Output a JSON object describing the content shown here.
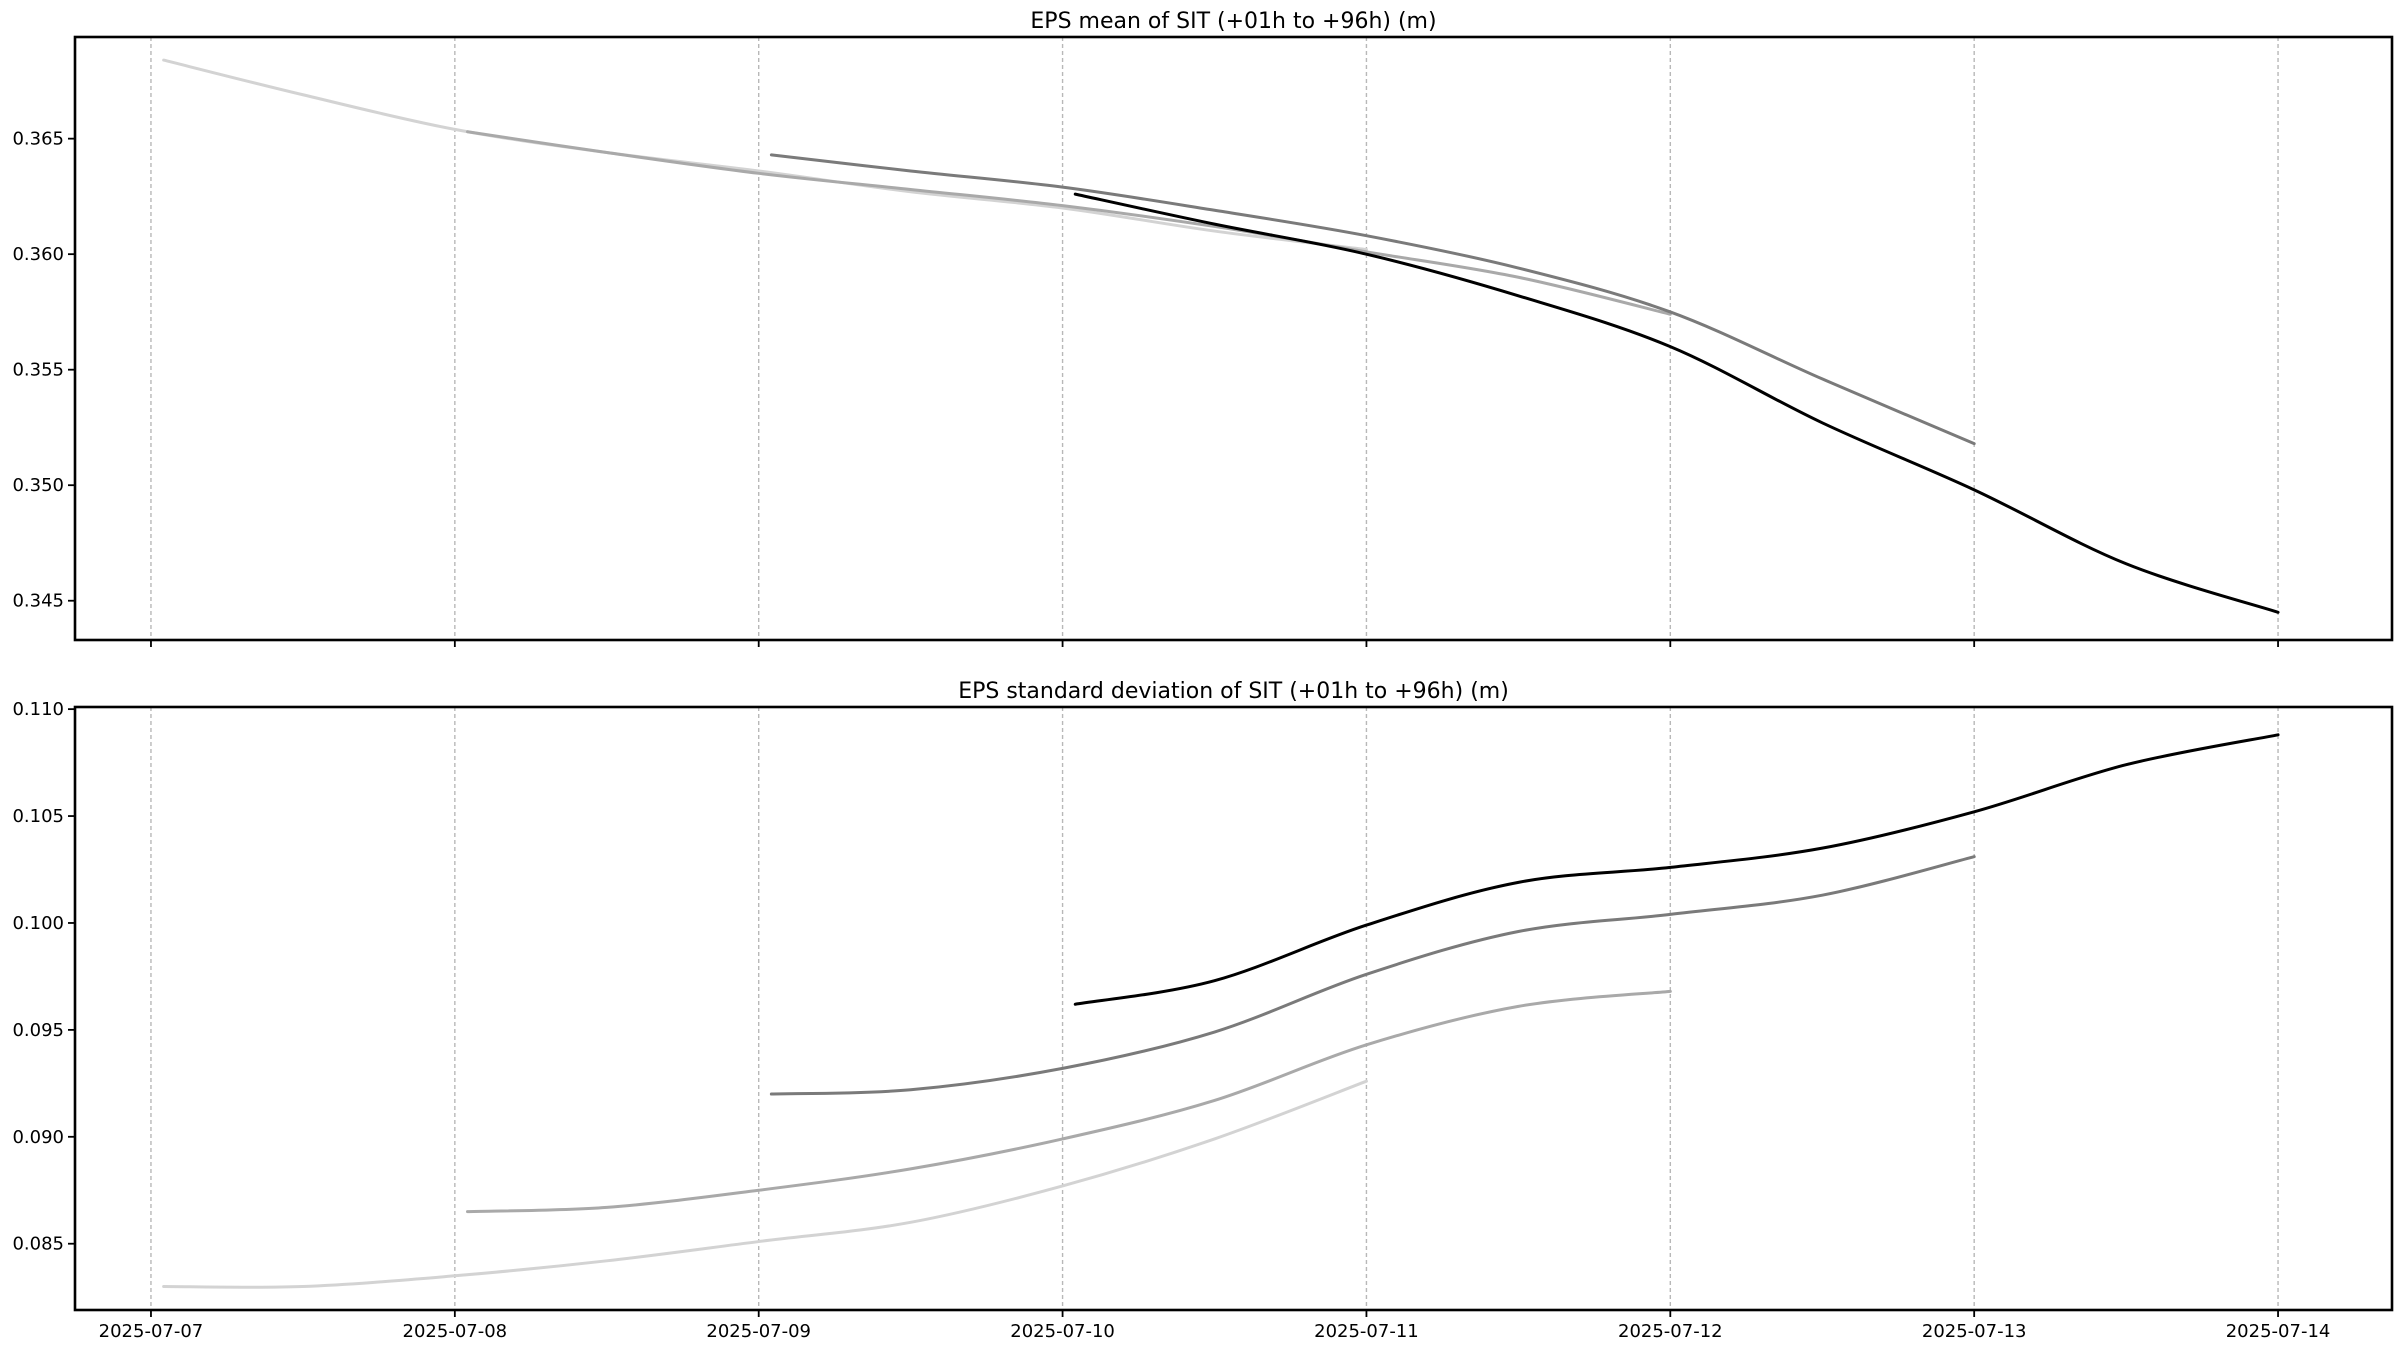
{
  "chart_data": [
    {
      "type": "line",
      "title": "EPS mean of SIT (+01h to +96h) (m)",
      "xlabel": "",
      "ylabel": "",
      "x_type": "date",
      "xlim": [
        "2025-07-06 18:00",
        "2025-07-14 09:00"
      ],
      "ylim": [
        0.3433,
        0.3694
      ],
      "x_ticks": [
        "2025-07-07",
        "2025-07-08",
        "2025-07-09",
        "2025-07-10",
        "2025-07-11",
        "2025-07-12",
        "2025-07-13",
        "2025-07-14"
      ],
      "y_ticks": [
        0.345,
        0.35,
        0.355,
        0.36,
        0.365
      ],
      "y_tick_labels": [
        "0.345",
        "0.350",
        "0.355",
        "0.360",
        "0.365"
      ],
      "grid": "vertical dashed lines at x ticks",
      "x_tick_labels_shown": false,
      "series": [
        {
          "color": "#d3d3d3",
          "points": [
            [
              "2025-07-07 01:00",
              0.3684
            ],
            [
              "2025-07-07 12:00",
              0.3669
            ],
            [
              "2025-07-08 00:00",
              0.3654
            ],
            [
              "2025-07-08 12:00",
              0.3644
            ],
            [
              "2025-07-09 00:00",
              0.3636
            ],
            [
              "2025-07-09 12:00",
              0.3627
            ],
            [
              "2025-07-10 00:00",
              0.362
            ],
            [
              "2025-07-10 12:00",
              0.361
            ],
            [
              "2025-07-11 00:00",
              0.3602
            ]
          ]
        },
        {
          "color": "#a9a9a9",
          "points": [
            [
              "2025-07-08 01:00",
              0.3653
            ],
            [
              "2025-07-08 12:00",
              0.3644
            ],
            [
              "2025-07-09 00:00",
              0.3635
            ],
            [
              "2025-07-09 12:00",
              0.3628
            ],
            [
              "2025-07-10 00:00",
              0.3621
            ],
            [
              "2025-07-10 12:00",
              0.3612
            ],
            [
              "2025-07-11 00:00",
              0.3601
            ],
            [
              "2025-07-11 12:00",
              0.359
            ],
            [
              "2025-07-12 00:00",
              0.3574
            ]
          ]
        },
        {
          "color": "#7a7a7a",
          "points": [
            [
              "2025-07-09 01:00",
              0.3643
            ],
            [
              "2025-07-09 12:00",
              0.3636
            ],
            [
              "2025-07-10 00:00",
              0.3629
            ],
            [
              "2025-07-10 12:00",
              0.3619
            ],
            [
              "2025-07-11 00:00",
              0.3608
            ],
            [
              "2025-07-11 12:00",
              0.3594
            ],
            [
              "2025-07-12 00:00",
              0.3575
            ],
            [
              "2025-07-12 12:00",
              0.3546
            ],
            [
              "2025-07-13 00:00",
              0.3518
            ]
          ]
        },
        {
          "color": "#000000",
          "points": [
            [
              "2025-07-10 01:00",
              0.3626
            ],
            [
              "2025-07-10 12:00",
              0.3613
            ],
            [
              "2025-07-11 00:00",
              0.36
            ],
            [
              "2025-07-11 12:00",
              0.3582
            ],
            [
              "2025-07-12 00:00",
              0.356
            ],
            [
              "2025-07-12 12:00",
              0.3527
            ],
            [
              "2025-07-13 00:00",
              0.3498
            ],
            [
              "2025-07-13 12:00",
              0.3466
            ],
            [
              "2025-07-14 00:00",
              0.3445
            ]
          ]
        }
      ]
    },
    {
      "type": "line",
      "title": "EPS standard deviation of SIT (+01h to +96h) (m)",
      "xlabel": "",
      "ylabel": "",
      "x_type": "date",
      "xlim": [
        "2025-07-06 18:00",
        "2025-07-14 09:00"
      ],
      "ylim": [
        0.0819,
        0.1101
      ],
      "x_ticks": [
        "2025-07-07",
        "2025-07-08",
        "2025-07-09",
        "2025-07-10",
        "2025-07-11",
        "2025-07-12",
        "2025-07-13",
        "2025-07-14"
      ],
      "y_ticks": [
        0.085,
        0.09,
        0.095,
        0.1,
        0.105,
        0.11
      ],
      "y_tick_labels": [
        "0.085",
        "0.090",
        "0.095",
        "0.100",
        "0.105",
        "0.110"
      ],
      "grid": "vertical dashed lines at x ticks",
      "x_tick_labels_shown": true,
      "series": [
        {
          "color": "#d3d3d3",
          "points": [
            [
              "2025-07-07 01:00",
              0.083
            ],
            [
              "2025-07-07 12:00",
              0.083
            ],
            [
              "2025-07-08 00:00",
              0.0835
            ],
            [
              "2025-07-08 12:00",
              0.0842
            ],
            [
              "2025-07-09 00:00",
              0.0851
            ],
            [
              "2025-07-09 12:00",
              0.086
            ],
            [
              "2025-07-10 00:00",
              0.0877
            ],
            [
              "2025-07-10 12:00",
              0.0899
            ],
            [
              "2025-07-11 00:00",
              0.0926
            ]
          ]
        },
        {
          "color": "#a9a9a9",
          "points": [
            [
              "2025-07-08 01:00",
              0.0865
            ],
            [
              "2025-07-08 12:00",
              0.0867
            ],
            [
              "2025-07-09 00:00",
              0.0875
            ],
            [
              "2025-07-09 12:00",
              0.0885
            ],
            [
              "2025-07-10 00:00",
              0.0899
            ],
            [
              "2025-07-10 12:00",
              0.0917
            ],
            [
              "2025-07-11 00:00",
              0.0943
            ],
            [
              "2025-07-11 12:00",
              0.0961
            ],
            [
              "2025-07-12 00:00",
              0.0968
            ]
          ]
        },
        {
          "color": "#7a7a7a",
          "points": [
            [
              "2025-07-09 01:00",
              0.092
            ],
            [
              "2025-07-09 12:00",
              0.0922
            ],
            [
              "2025-07-10 00:00",
              0.0932
            ],
            [
              "2025-07-10 12:00",
              0.0949
            ],
            [
              "2025-07-11 00:00",
              0.0976
            ],
            [
              "2025-07-11 12:00",
              0.0996
            ],
            [
              "2025-07-12 00:00",
              0.1004
            ],
            [
              "2025-07-12 12:00",
              0.1013
            ],
            [
              "2025-07-13 00:00",
              0.1031
            ]
          ]
        },
        {
          "color": "#000000",
          "points": [
            [
              "2025-07-10 01:00",
              0.0962
            ],
            [
              "2025-07-10 12:00",
              0.0973
            ],
            [
              "2025-07-11 00:00",
              0.0999
            ],
            [
              "2025-07-11 12:00",
              0.1019
            ],
            [
              "2025-07-12 00:00",
              0.1026
            ],
            [
              "2025-07-12 12:00",
              0.1035
            ],
            [
              "2025-07-13 00:00",
              0.1052
            ],
            [
              "2025-07-13 12:00",
              0.1074
            ],
            [
              "2025-07-14 00:00",
              0.1088
            ]
          ]
        }
      ]
    }
  ]
}
